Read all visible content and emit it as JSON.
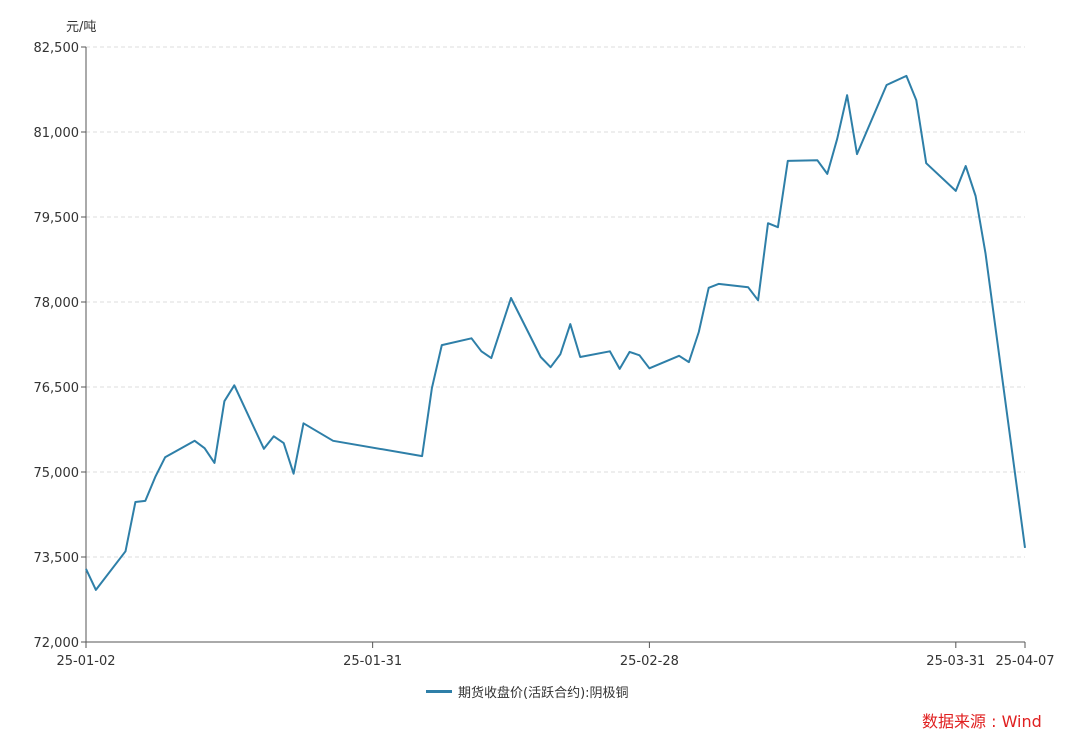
{
  "chart_data": {
    "type": "line",
    "ylabel": "元/吨",
    "ylim": [
      72000,
      82500
    ],
    "yticks": [
      72000,
      73500,
      75000,
      76500,
      78000,
      79500,
      81000,
      82500
    ],
    "ytick_labels": [
      "72,000",
      "73,500",
      "75,000",
      "76,500",
      "78,000",
      "79,500",
      "81,000",
      "82,500"
    ],
    "xlim": [
      "2025-01-02",
      "2025-04-07"
    ],
    "xticks": [
      "2025-01-02",
      "2025-01-31",
      "2025-02-28",
      "2025-03-31",
      "2025-04-07"
    ],
    "xtick_labels": [
      "25-01-02",
      "25-01-31",
      "25-02-28",
      "25-03-31",
      "25-04-07"
    ],
    "grid": "horizontal-dashed",
    "legend_position": "bottom-center",
    "series": [
      {
        "name": "期货收盘价(活跃合约):阴极铜",
        "color": "#2e7fa8",
        "x": [
          "2025-01-02",
          "2025-01-03",
          "2025-01-06",
          "2025-01-07",
          "2025-01-08",
          "2025-01-09",
          "2025-01-10",
          "2025-01-13",
          "2025-01-14",
          "2025-01-15",
          "2025-01-16",
          "2025-01-17",
          "2025-01-20",
          "2025-01-21",
          "2025-01-22",
          "2025-01-23",
          "2025-01-24",
          "2025-01-27",
          "2025-02-05",
          "2025-02-06",
          "2025-02-07",
          "2025-02-10",
          "2025-02-11",
          "2025-02-12",
          "2025-02-14",
          "2025-02-17",
          "2025-02-18",
          "2025-02-19",
          "2025-02-20",
          "2025-02-21",
          "2025-02-24",
          "2025-02-25",
          "2025-02-26",
          "2025-02-27",
          "2025-02-28",
          "2025-03-03",
          "2025-03-04",
          "2025-03-05",
          "2025-03-06",
          "2025-03-07",
          "2025-03-10",
          "2025-03-11",
          "2025-03-12",
          "2025-03-13",
          "2025-03-14",
          "2025-03-17",
          "2025-03-18",
          "2025-03-19",
          "2025-03-20",
          "2025-03-21",
          "2025-03-24",
          "2025-03-26",
          "2025-03-27",
          "2025-03-28",
          "2025-03-31",
          "2025-04-01",
          "2025-04-02",
          "2025-04-03",
          "2025-04-07"
        ],
        "values": [
          73290,
          72920,
          73600,
          74470,
          74490,
          74910,
          75260,
          75550,
          75420,
          75160,
          76250,
          76530,
          75410,
          75630,
          75510,
          74970,
          75860,
          75550,
          75280,
          76480,
          77240,
          77360,
          77130,
          77010,
          78070,
          77030,
          76850,
          77080,
          77610,
          77030,
          77130,
          76820,
          77120,
          77060,
          76830,
          77050,
          76940,
          77470,
          78250,
          78320,
          78260,
          78030,
          79390,
          79320,
          80490,
          80500,
          80260,
          80880,
          81650,
          80610,
          81830,
          81990,
          81560,
          80450,
          79960,
          80400,
          79870,
          78860,
          73660
        ]
      }
    ]
  },
  "source": {
    "text": "数据来源 : Wind",
    "color": "#e02020"
  }
}
